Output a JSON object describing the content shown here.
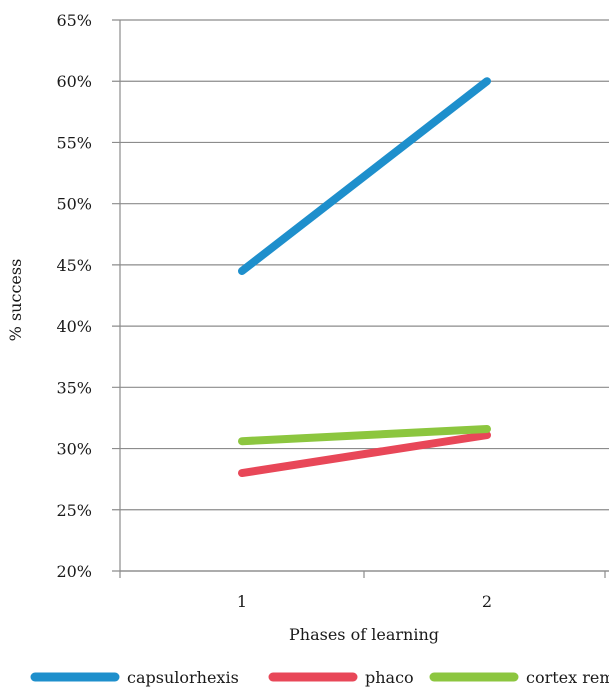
{
  "chart_data": {
    "type": "line",
    "x": [
      "1",
      "2"
    ],
    "xlabel": "Phases of learning",
    "ylabel": "% success",
    "ylim": [
      0.2,
      0.65
    ],
    "yticks": [
      "20%",
      "25%",
      "30%",
      "35%",
      "40%",
      "45%",
      "50%",
      "55%",
      "60%",
      "65%"
    ],
    "grid": true,
    "legend_position": "bottom",
    "series": [
      {
        "name": "capsulorhexis",
        "values": [
          0.445,
          0.6
        ],
        "color": "#1e8fcc"
      },
      {
        "name": "phaco",
        "values": [
          0.28,
          0.311
        ],
        "color": "#e84758"
      },
      {
        "name": "cortex removal",
        "values": [
          0.306,
          0.316
        ],
        "color": "#8cc63f"
      }
    ]
  }
}
